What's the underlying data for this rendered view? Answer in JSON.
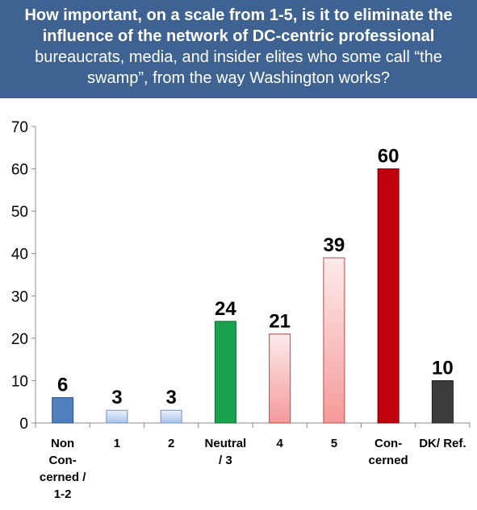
{
  "header": {
    "title_bold": "How important, on a scale from 1-5, is it to eliminate the influence of the network of DC-centric professional",
    "title_rest": "bureaucrats, media, and insider elites who some call “the swamp”, from the way Washington works?"
  },
  "chart_data": {
    "type": "bar",
    "categories": [
      "Non Con-cerned / 1-2",
      "1",
      "2",
      "Neutral / 3",
      "4",
      "5",
      "Con-cerned",
      "DK/ Ref."
    ],
    "category_lines": [
      [
        "Non",
        "Con-",
        "cerned /",
        "1-2"
      ],
      [
        "1"
      ],
      [
        "2"
      ],
      [
        "Neutral",
        "/ 3"
      ],
      [
        "4"
      ],
      [
        "5"
      ],
      [
        "Con-",
        "cerned"
      ],
      [
        "DK/ Ref."
      ]
    ],
    "values": [
      6,
      3,
      3,
      24,
      21,
      39,
      60,
      10
    ],
    "data_labels": [
      "6",
      "3",
      "3",
      "24",
      "21",
      "39",
      "60",
      "10"
    ],
    "ylim": [
      0,
      70
    ],
    "yticks": [
      0,
      10,
      20,
      30,
      40,
      50,
      60,
      70
    ],
    "grid": false,
    "legend": "none",
    "colors": {
      "bar_fills": [
        "#4f7fbd",
        "url(#gBlue)",
        "url(#gBlue)",
        "#1aa24f",
        "url(#gPink)",
        "url(#gPink)",
        "#c0000c",
        "#3c3c3c"
      ],
      "bar_strokes": [
        "#33557f",
        "#6d8fbd",
        "#6d8fbd",
        "#0d6a32",
        "#b54a4a",
        "#b54a4a",
        "#7a0008",
        "#1e1e1e"
      ]
    }
  }
}
